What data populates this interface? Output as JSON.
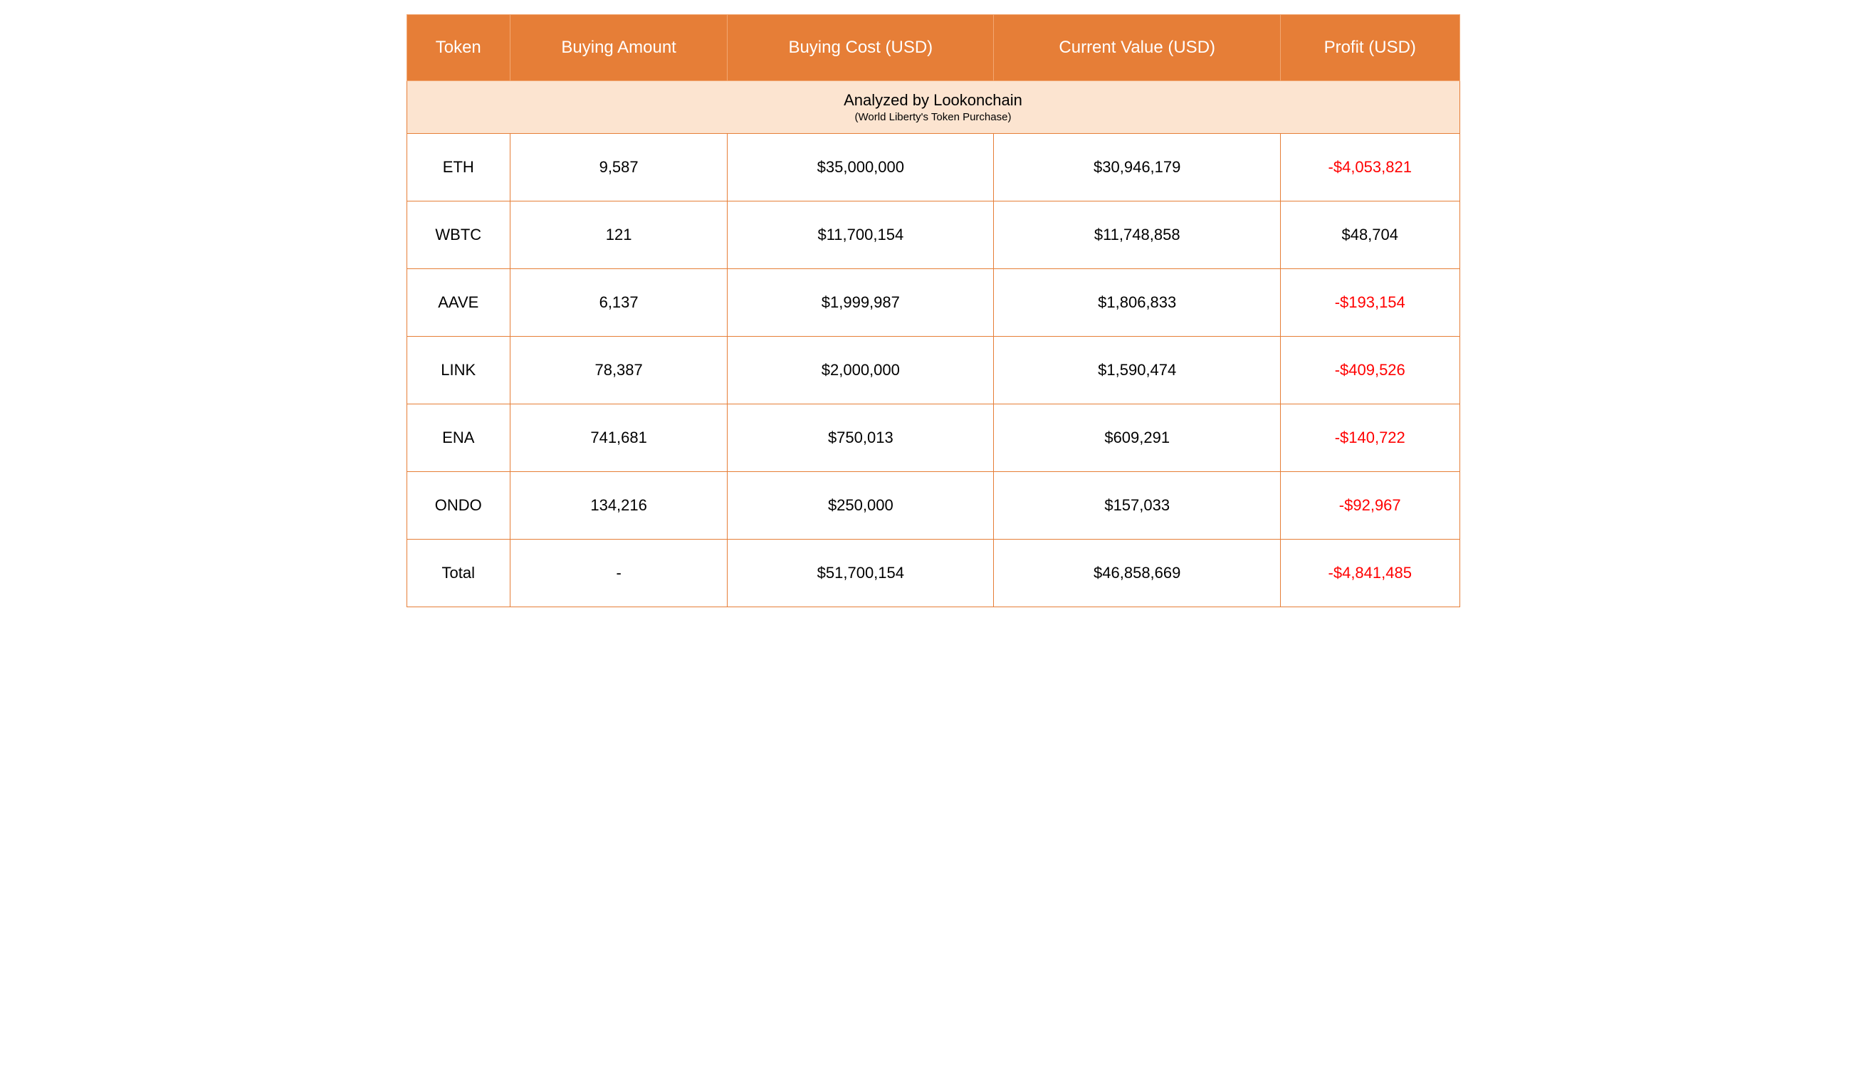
{
  "table": {
    "type": "table",
    "header_bg_color": "#e67e37",
    "header_text_color": "#ffffff",
    "header_fontsize": 24,
    "subtitle_bg_color": "#fce4d0",
    "subtitle_main_fontsize": 22,
    "subtitle_sub_fontsize": 15,
    "cell_fontsize": 22,
    "cell_text_color": "#000000",
    "negative_color": "#ff0000",
    "border_color": "#e67e37",
    "background_color": "#ffffff",
    "columns": [
      "Token",
      "Buying Amount",
      "Buying Cost (USD)",
      "Current Value (USD)",
      "Profit (USD)"
    ],
    "subtitle_main": "Analyzed by Lookonchain",
    "subtitle_sub": "(World Liberty's Token Purchase)",
    "rows": [
      {
        "token": "ETH",
        "amount": "9,587",
        "cost": "$35,000,000",
        "value": "$30,946,179",
        "profit": "-$4,053,821",
        "profit_negative": true
      },
      {
        "token": "WBTC",
        "amount": "121",
        "cost": "$11,700,154",
        "value": "$11,748,858",
        "profit": "$48,704",
        "profit_negative": false
      },
      {
        "token": "AAVE",
        "amount": "6,137",
        "cost": "$1,999,987",
        "value": "$1,806,833",
        "profit": "-$193,154",
        "profit_negative": true
      },
      {
        "token": "LINK",
        "amount": "78,387",
        "cost": "$2,000,000",
        "value": "$1,590,474",
        "profit": "-$409,526",
        "profit_negative": true
      },
      {
        "token": "ENA",
        "amount": "741,681",
        "cost": "$750,013",
        "value": "$609,291",
        "profit": "-$140,722",
        "profit_negative": true
      },
      {
        "token": "ONDO",
        "amount": "134,216",
        "cost": "$250,000",
        "value": "$157,033",
        "profit": "-$92,967",
        "profit_negative": true
      },
      {
        "token": "Total",
        "amount": "-",
        "cost": "$51,700,154",
        "value": "$46,858,669",
        "profit": "-$4,841,485",
        "profit_negative": true
      }
    ]
  }
}
